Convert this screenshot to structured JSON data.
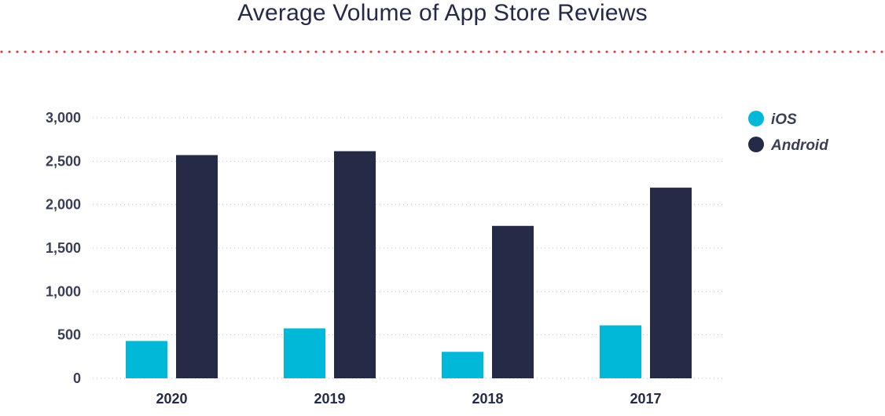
{
  "chart_data": {
    "type": "bar",
    "title": "Average Volume of App Store Reviews",
    "categories": [
      "2020",
      "2019",
      "2018",
      "2017"
    ],
    "series": [
      {
        "name": "iOS",
        "values": [
          430,
          575,
          305,
          610
        ],
        "color": "#00b9d8"
      },
      {
        "name": "Android",
        "values": [
          2570,
          2615,
          1755,
          2195
        ],
        "color": "#252b47"
      }
    ],
    "ylim": [
      0,
      3000
    ],
    "yticks": [
      0,
      500,
      1000,
      1500,
      2000,
      2500,
      3000
    ],
    "ytick_labels": [
      "0",
      "500",
      "1,000",
      "1,500",
      "2,000",
      "2,500",
      "3,000"
    ],
    "grid": true,
    "legend_position": "top-right",
    "accent_rule_color": "#e8323c"
  }
}
